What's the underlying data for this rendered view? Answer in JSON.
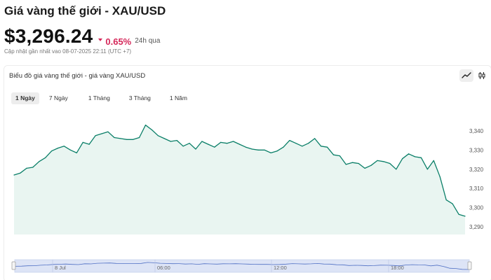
{
  "header": {
    "title": "Giá vàng thế giới - XAU/USD",
    "price": "$3,296.24",
    "change": "0.65%",
    "period": "24h qua",
    "updated": "Cập nhật gần nhất vao 08-07-2025 22:11 (UTC +7)"
  },
  "colors": {
    "accent": "#d5285a",
    "line": "#0b7f68",
    "area": "#e9f5f1",
    "navigator": "#dde4f6"
  },
  "chart_panel": {
    "title": "Biểu đồ giá vàng thế giới - giá vàng XAU/USD",
    "tools": [
      "line-chart-icon",
      "candlestick-icon"
    ],
    "tabs": [
      {
        "label": "1 Ngày",
        "active": true
      },
      {
        "label": "7 Ngày",
        "active": false
      },
      {
        "label": "1 Tháng",
        "active": false
      },
      {
        "label": "3 Tháng",
        "active": false
      },
      {
        "label": "1 Năm",
        "active": false
      }
    ]
  },
  "chart_data": {
    "type": "area",
    "title": "",
    "ylim": [
      3286,
      3352
    ],
    "y_ticks": [
      "3,340",
      "3,330",
      "3,320",
      "3,310",
      "3,300",
      "3,290"
    ],
    "y_tick_values": [
      3340,
      3330,
      3320,
      3310,
      3300,
      3290
    ],
    "navigator_labels": [
      "8 Jul",
      "06:00",
      "12:00",
      "18:00"
    ],
    "grid": false,
    "series": [
      {
        "values": [
          3317.0,
          3318.0,
          3320.5,
          3321.0,
          3324.0,
          3326.0,
          3329.5,
          3331.0,
          3332.0,
          3330.0,
          3328.5,
          3334.0,
          3333.0,
          3337.5,
          3338.5,
          3339.5,
          3336.5,
          3336.0,
          3335.5,
          3335.5,
          3336.5,
          3343.0,
          3340.5,
          3337.5,
          3336.0,
          3334.5,
          3335.0,
          3332.0,
          3333.5,
          3330.5,
          3334.5,
          3333.0,
          3331.5,
          3334.0,
          3333.5,
          3334.5,
          3333.0,
          3331.5,
          3330.5,
          3330.0,
          3330.0,
          3328.5,
          3329.5,
          3331.5,
          3335.0,
          3333.5,
          3332.0,
          3333.5,
          3336.0,
          3332.0,
          3331.5,
          3327.5,
          3327.0,
          3322.5,
          3323.5,
          3323.0,
          3320.5,
          3322.0,
          3324.5,
          3324.0,
          3323.0,
          3320.0,
          3325.5,
          3328.0,
          3326.5,
          3326.0,
          3320.0,
          3324.5,
          3316.0,
          3304.0,
          3302.0,
          3296.5,
          3295.5
        ]
      }
    ]
  }
}
